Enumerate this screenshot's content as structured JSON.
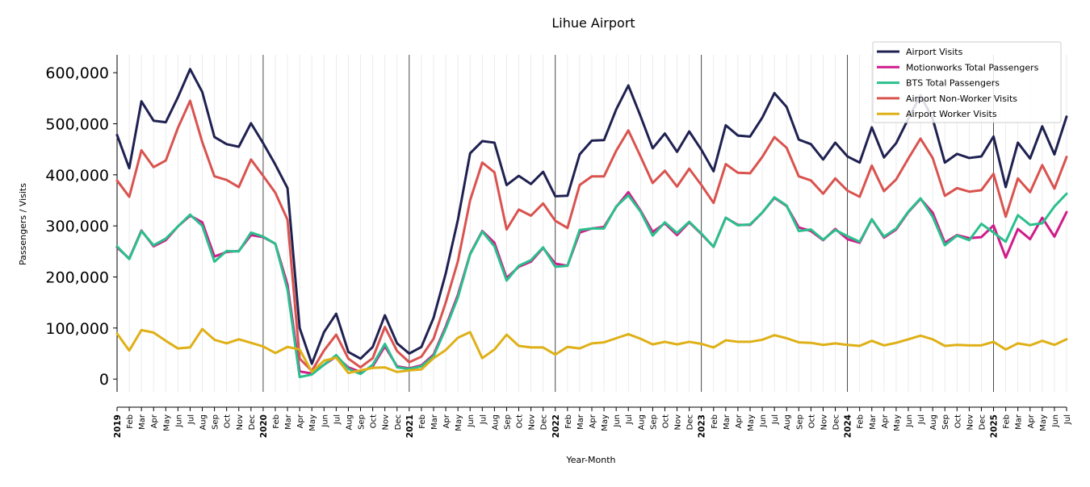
{
  "chart_data": {
    "type": "line",
    "title": "Lihue Airport",
    "xlabel": "Year-Month",
    "ylabel": "Passengers / Visits",
    "ylim": [
      -25000,
      635000
    ],
    "yticks": [
      0,
      100000,
      200000,
      300000,
      400000,
      500000,
      600000
    ],
    "ytick_labels": [
      "0",
      "100,000",
      "200,000",
      "300,000",
      "400,000",
      "500,000",
      "600,000"
    ],
    "x_start": "2019-01",
    "x_end": "2025-07",
    "x_tick_labels": [
      "2019",
      "Feb",
      "Mar",
      "Apr",
      "May",
      "Jun",
      "Jul",
      "Aug",
      "Sep",
      "Oct",
      "Nov",
      "Dec",
      "2020",
      "Feb",
      "Mar",
      "Apr",
      "May",
      "Jun",
      "Jul",
      "Aug",
      "Sep",
      "Oct",
      "Nov",
      "Dec",
      "2021",
      "Feb",
      "Mar",
      "Apr",
      "May",
      "Jun",
      "Jul",
      "Aug",
      "Sep",
      "Oct",
      "Nov",
      "Dec",
      "2022",
      "Feb",
      "Mar",
      "Apr",
      "May",
      "Jun",
      "Jul",
      "Aug",
      "Sep",
      "Oct",
      "Nov",
      "Dec",
      "2023",
      "Feb",
      "Mar",
      "Apr",
      "May",
      "Jun",
      "Jul",
      "Aug",
      "Sep",
      "Oct",
      "Nov",
      "Dec",
      "2024",
      "Feb",
      "Mar",
      "Apr",
      "May",
      "Jun",
      "Jul",
      "Aug",
      "Sep",
      "Oct",
      "Nov",
      "Dec",
      "2025",
      "Feb",
      "Mar",
      "Apr",
      "May",
      "Jun",
      "Jul"
    ],
    "year_boundaries": [
      "2020-01",
      "2021-01",
      "2022-01",
      "2023-01",
      "2024-01",
      "2025-01"
    ],
    "legend_position": "top-right",
    "grid": "vertical-monthly",
    "series": [
      {
        "name": "Airport Visits",
        "color": "#1f2151",
        "values": [
          478000,
          413000,
          544000,
          506000,
          503000,
          552000,
          607000,
          562000,
          474000,
          460000,
          455000,
          501000,
          462000,
          420000,
          374000,
          100000,
          30000,
          92000,
          128000,
          53000,
          40000,
          63000,
          125000,
          70000,
          50000,
          63000,
          120000,
          207000,
          312000,
          442000,
          466000,
          463000,
          380000,
          398000,
          382000,
          406000,
          358000,
          359000,
          440000,
          467000,
          468000,
          528000,
          575000,
          515000,
          452000,
          481000,
          445000,
          485000,
          449000,
          407000,
          497000,
          477000,
          475000,
          512000,
          560000,
          533000,
          469000,
          460000,
          430000,
          463000,
          436000,
          424000,
          493000,
          434000,
          462000,
          510000,
          556000,
          510000,
          424000,
          441000,
          433000,
          436000,
          475000,
          376000,
          463000,
          432000,
          495000,
          440000,
          514000
        ]
      },
      {
        "name": "Motionworks Total Passengers",
        "color": "#d01c8b",
        "values": [
          258000,
          236000,
          291000,
          260000,
          272000,
          299000,
          320000,
          307000,
          240000,
          249000,
          251000,
          282000,
          278000,
          265000,
          185000,
          15000,
          11000,
          28000,
          44000,
          23000,
          14000,
          25000,
          64000,
          25000,
          21000,
          27000,
          48000,
          103000,
          165000,
          245000,
          290000,
          267000,
          198000,
          220000,
          230000,
          257000,
          226000,
          222000,
          287000,
          295000,
          298000,
          337000,
          366000,
          330000,
          288000,
          305000,
          282000,
          307000,
          284000,
          259000,
          316000,
          302000,
          302000,
          326000,
          355000,
          339000,
          297000,
          290000,
          272000,
          294000,
          274000,
          267000,
          313000,
          277000,
          293000,
          327000,
          353000,
          326000,
          267000,
          282000,
          276000,
          278000,
          301000,
          238000,
          294000,
          274000,
          316000,
          279000,
          327000
        ]
      },
      {
        "name": "BTS Total Passengers",
        "color": "#2bbf8c",
        "values": [
          260000,
          235000,
          290000,
          262000,
          275000,
          299000,
          322000,
          300000,
          230000,
          251000,
          250000,
          287000,
          279000,
          265000,
          175000,
          4000,
          9000,
          28000,
          47000,
          20000,
          10000,
          28000,
          69000,
          23000,
          20000,
          25000,
          45000,
          99000,
          160000,
          244000,
          289000,
          260000,
          193000,
          222000,
          233000,
          258000,
          220000,
          222000,
          292000,
          295000,
          295000,
          338000,
          360000,
          328000,
          281000,
          307000,
          286000,
          308000,
          285000,
          259000,
          316000,
          301000,
          303000,
          326000,
          356000,
          340000,
          290000,
          293000,
          273000,
          292000,
          280000,
          269000,
          313000,
          279000,
          295000,
          328000,
          354000,
          318000,
          262000,
          281000,
          272000,
          304000,
          287000,
          269000,
          321000,
          302000,
          305000,
          338000,
          363000
        ]
      },
      {
        "name": "Airport Non-Worker Visits",
        "color": "#d9534f",
        "values": [
          389000,
          357000,
          448000,
          415000,
          428000,
          492000,
          545000,
          464000,
          397000,
          390000,
          376000,
          430000,
          398000,
          365000,
          312000,
          40000,
          16000,
          56000,
          87000,
          40000,
          23000,
          41000,
          102000,
          55000,
          33000,
          44000,
          79000,
          150000,
          231000,
          350000,
          424000,
          405000,
          293000,
          332000,
          320000,
          344000,
          310000,
          296000,
          380000,
          397000,
          397000,
          447000,
          487000,
          436000,
          384000,
          408000,
          377000,
          412000,
          380000,
          345000,
          421000,
          404000,
          403000,
          435000,
          474000,
          453000,
          397000,
          389000,
          363000,
          393000,
          369000,
          357000,
          418000,
          368000,
          391000,
          432000,
          471000,
          433000,
          359000,
          374000,
          367000,
          370000,
          402000,
          318000,
          393000,
          366000,
          419000,
          373000,
          435000
        ]
      },
      {
        "name": "Airport Worker Visits",
        "color": "#dfb017",
        "values": [
          89000,
          56000,
          96000,
          91000,
          75000,
          60000,
          62000,
          98000,
          77000,
          70000,
          78000,
          71000,
          64000,
          51000,
          63000,
          58000,
          14000,
          36000,
          42000,
          12000,
          17000,
          22000,
          23000,
          14000,
          17000,
          19000,
          41000,
          57000,
          81000,
          92000,
          41000,
          58000,
          87000,
          65000,
          62000,
          62000,
          48000,
          63000,
          60000,
          70000,
          72000,
          80000,
          88000,
          79000,
          68000,
          73000,
          68000,
          73000,
          69000,
          62000,
          76000,
          73000,
          73000,
          77000,
          86000,
          80000,
          72000,
          71000,
          67000,
          70000,
          67000,
          65000,
          75000,
          66000,
          71000,
          78000,
          85000,
          78000,
          65000,
          67000,
          66000,
          66000,
          73000,
          58000,
          70000,
          66000,
          75000,
          67000,
          78000
        ]
      }
    ]
  }
}
